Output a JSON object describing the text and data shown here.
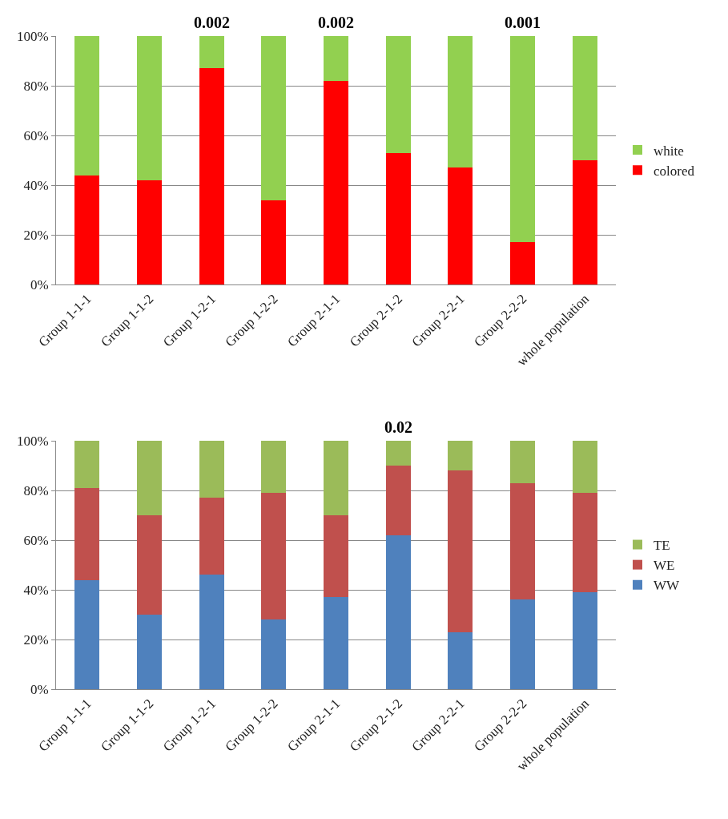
{
  "chart_data": [
    {
      "type": "bar",
      "stacked": true,
      "categories": [
        "Group 1-1-1",
        "Group 1-1-2",
        "Group 1-2-1",
        "Group 1-2-2",
        "Group 2-1-1",
        "Group 2-1-2",
        "Group 2-2-1",
        "Group 2-2-2",
        "whole population"
      ],
      "series": [
        {
          "name": "colored",
          "color": "#ff0000",
          "values": [
            44,
            42,
            87,
            34,
            82,
            53,
            47,
            17,
            50
          ]
        },
        {
          "name": "white",
          "color": "#92d050",
          "values": [
            56,
            58,
            13,
            66,
            18,
            47,
            53,
            83,
            50
          ]
        }
      ],
      "ylim": [
        0,
        100
      ],
      "yticks": [
        {
          "value": 0,
          "label": "0%"
        },
        {
          "value": 20,
          "label": "20%"
        },
        {
          "value": 40,
          "label": "40%"
        },
        {
          "value": 60,
          "label": "60%"
        },
        {
          "value": 80,
          "label": "80%"
        },
        {
          "value": 100,
          "label": "100%"
        }
      ],
      "grid": "y",
      "legend": "right",
      "annotations": [
        {
          "text": "0.002",
          "x": "Group 1-2-1",
          "y": 100
        },
        {
          "text": "0.002",
          "x": "Group 2-1-1",
          "y": 100
        },
        {
          "text": "0.001",
          "x": "Group 2-2-2",
          "y": 100
        }
      ]
    },
    {
      "type": "bar",
      "stacked": true,
      "categories": [
        "Group 1-1-1",
        "Group 1-1-2",
        "Group 1-2-1",
        "Group 1-2-2",
        "Group 2-1-1",
        "Group 2-1-2",
        "Group 2-2-1",
        "Group 2-2-2",
        "whole population"
      ],
      "series": [
        {
          "name": "WW",
          "color": "#4f81bd",
          "values": [
            44,
            30,
            46,
            28,
            37,
            62,
            23,
            36,
            39
          ]
        },
        {
          "name": "WE",
          "color": "#c0504d",
          "values": [
            37,
            40,
            31,
            51,
            33,
            28,
            65,
            47,
            40
          ]
        },
        {
          "name": "TE",
          "color": "#9bbb59",
          "values": [
            19,
            30,
            23,
            21,
            30,
            10,
            12,
            17,
            21
          ]
        }
      ],
      "ylim": [
        0,
        100
      ],
      "yticks": [
        {
          "value": 0,
          "label": "0%"
        },
        {
          "value": 20,
          "label": "20%"
        },
        {
          "value": 40,
          "label": "40%"
        },
        {
          "value": 60,
          "label": "60%"
        },
        {
          "value": 80,
          "label": "80%"
        },
        {
          "value": 100,
          "label": "100%"
        }
      ],
      "grid": "y",
      "legend": "right",
      "annotations": [
        {
          "text": "0.02",
          "x": "Group 2-1-2",
          "y": 100
        }
      ]
    }
  ]
}
